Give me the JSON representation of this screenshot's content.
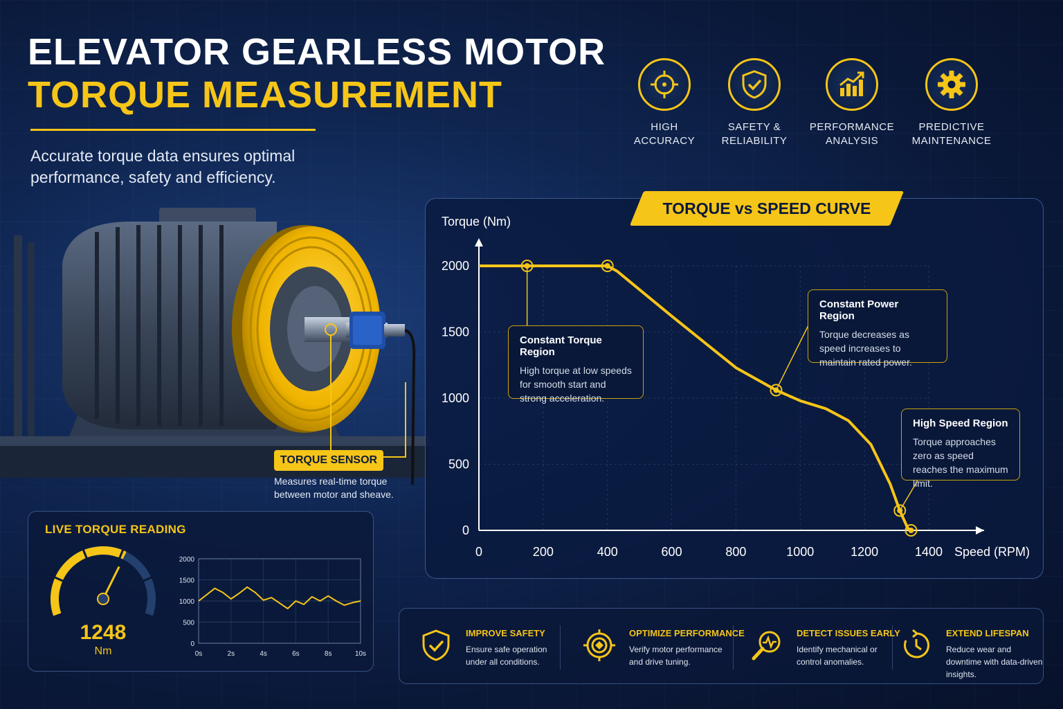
{
  "header": {
    "title_line1": "ELEVATOR GEARLESS MOTOR",
    "title_line2": "TORQUE MEASUREMENT",
    "subtitle": "Accurate torque data ensures optimal performance, safety and efficiency."
  },
  "features": [
    {
      "label": "HIGH\nACCURACY",
      "icon": "crosshair-icon"
    },
    {
      "label": "SAFETY &\nRELIABILITY",
      "icon": "shield-check-icon"
    },
    {
      "label": "PERFORMANCE\nANALYSIS",
      "icon": "bar-chart-trend-icon"
    },
    {
      "label": "PREDICTIVE\nMAINTENANCE",
      "icon": "gear-icon"
    }
  ],
  "sensor": {
    "tag": "TORQUE SENSOR",
    "description": "Measures real-time torque between motor and sheave."
  },
  "live_reading": {
    "title": "LIVE TORQUE READING",
    "value": "1248",
    "unit": "Nm",
    "gauge_fraction": 0.62
  },
  "callouts": {
    "constant_torque": {
      "title": "Constant Torque Region",
      "text": "High torque at low speeds for smooth start and strong acceleration."
    },
    "constant_power": {
      "title": "Constant Power Region",
      "text": "Torque decreases as speed increases to maintain rated power."
    },
    "high_speed": {
      "title": "High Speed Region",
      "text": "Torque approaches zero as speed reaches the maximum limit."
    }
  },
  "benefits": [
    {
      "title": "IMPROVE SAFETY",
      "text": "Ensure safe operation under all conditions.",
      "icon": "shield-check-icon"
    },
    {
      "title": "OPTIMIZE PERFORMANCE",
      "text": "Verify motor performance and drive tuning.",
      "icon": "target-icon"
    },
    {
      "title": "DETECT ISSUES EARLY",
      "text": "Identify mechanical or control anomalies.",
      "icon": "magnifier-pulse-icon"
    },
    {
      "title": "EXTEND LIFESPAN",
      "text": "Reduce wear and downtime with data-driven insights.",
      "icon": "clock-cycle-icon"
    }
  ],
  "colors": {
    "accent": "#f5c518",
    "background": "#0c1d44",
    "text": "#ffffff"
  },
  "chart_data": [
    {
      "type": "line",
      "title": "TORQUE vs SPEED CURVE",
      "xlabel": "Speed (RPM)",
      "ylabel": "Torque (Nm)",
      "xlim": [
        0,
        1400
      ],
      "ylim": [
        0,
        2000
      ],
      "xticks": [
        0,
        200,
        400,
        600,
        800,
        1000,
        1200,
        1400
      ],
      "yticks": [
        0,
        500,
        1000,
        1500,
        2000
      ],
      "grid": true,
      "x": [
        0,
        150,
        400,
        430,
        600,
        800,
        925,
        1000,
        1080,
        1150,
        1220,
        1280,
        1310,
        1335,
        1345
      ],
      "y": [
        2000,
        2000,
        2000,
        1960,
        1620,
        1230,
        1060,
        980,
        920,
        830,
        650,
        350,
        150,
        15,
        0
      ],
      "markers": [
        [
          150,
          2000
        ],
        [
          400,
          2000
        ],
        [
          925,
          1060
        ],
        [
          1310,
          150
        ],
        [
          1345,
          0
        ]
      ]
    },
    {
      "type": "line",
      "title": "",
      "xlim": [
        0,
        10
      ],
      "ylim": [
        0,
        2000
      ],
      "xticks": [
        "0s",
        "2s",
        "4s",
        "6s",
        "8s",
        "10s"
      ],
      "yticks": [
        0,
        500,
        1000,
        1500,
        2000
      ],
      "grid": true,
      "x": [
        0,
        0.5,
        1,
        1.5,
        2,
        2.5,
        3,
        3.5,
        4,
        4.5,
        5,
        5.5,
        6,
        6.5,
        7,
        7.5,
        8,
        8.5,
        9,
        9.5,
        10
      ],
      "y": [
        1000,
        1150,
        1300,
        1200,
        1050,
        1180,
        1330,
        1200,
        1020,
        1080,
        950,
        820,
        1000,
        920,
        1100,
        1000,
        1120,
        1000,
        900,
        960,
        1000
      ]
    }
  ]
}
